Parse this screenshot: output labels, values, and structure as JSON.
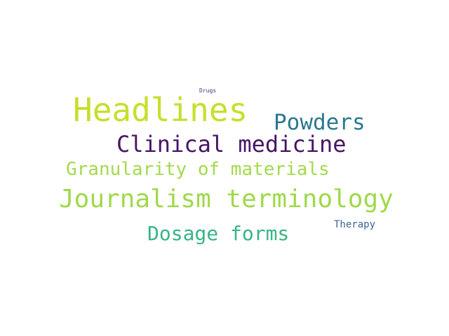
{
  "words": [
    {
      "text": "Headlines",
      "color": "#c7df2b"
    },
    {
      "text": "Journalism terminology",
      "color": "#a0d94a"
    },
    {
      "text": "Clinical medicine",
      "color": "#471565"
    },
    {
      "text": "Granularity of materials",
      "color": "#a4da4c"
    },
    {
      "text": "Powders",
      "color": "#2a788e"
    },
    {
      "text": "Dosage forms",
      "color": "#38b585"
    },
    {
      "text": "Therapy",
      "color": "#3d6592"
    },
    {
      "text": "Drugs",
      "color": "#472f7d"
    }
  ]
}
